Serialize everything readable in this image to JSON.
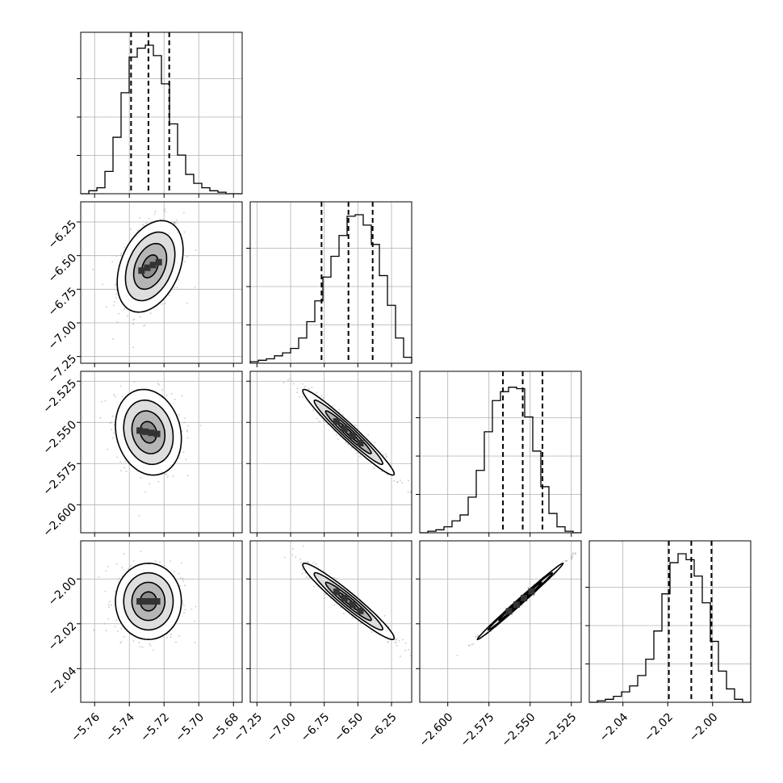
{
  "chart_data": {
    "type": "corner",
    "grid": true,
    "quantile_lines": "dashed",
    "parameters": [
      {
        "range": [
          -5.768,
          -5.675
        ],
        "ticks": [
          "−5.76",
          "−5.74",
          "−5.72",
          "−5.70",
          "−5.68"
        ],
        "tick_values": [
          -5.76,
          -5.74,
          -5.72,
          -5.7,
          -5.68
        ],
        "quantiles": [
          -5.739,
          -5.729,
          -5.717
        ],
        "hist": [
          0.0,
          0.02,
          0.04,
          0.15,
          0.38,
          0.68,
          0.92,
          0.98,
          1.0,
          0.93,
          0.74,
          0.47,
          0.26,
          0.13,
          0.07,
          0.04,
          0.02,
          0.01,
          0.0,
          0.0
        ]
      },
      {
        "range": [
          -7.3,
          -6.1
        ],
        "ticks": [
          "−7.25",
          "−7.00",
          "−6.75",
          "−6.50",
          "−6.25"
        ],
        "tick_values": [
          -7.25,
          -7.0,
          -6.75,
          -6.5,
          -6.25
        ],
        "quantiles": [
          -6.77,
          -6.57,
          -6.39
        ],
        "hist": [
          0.01,
          0.02,
          0.03,
          0.05,
          0.07,
          0.1,
          0.17,
          0.28,
          0.42,
          0.58,
          0.72,
          0.86,
          0.99,
          1.0,
          0.93,
          0.8,
          0.59,
          0.39,
          0.17,
          0.04
        ]
      },
      {
        "range": [
          -2.617,
          -2.519
        ],
        "ticks": [
          "−2.600",
          "−2.575",
          "−2.550",
          "−2.525"
        ],
        "tick_values": [
          -2.6,
          -2.575,
          -2.55,
          -2.525
        ],
        "quantiles": [
          -2.5665,
          -2.5545,
          -2.5425
        ],
        "hist": [
          0.0,
          0.01,
          0.02,
          0.04,
          0.08,
          0.12,
          0.24,
          0.42,
          0.68,
          0.89,
          0.95,
          0.98,
          0.97,
          0.78,
          0.55,
          0.31,
          0.13,
          0.04,
          0.01,
          0.0
        ]
      },
      {
        "range": [
          -2.055,
          -1.983
        ],
        "ticks": [
          "−2.04",
          "−2.02",
          "−2.00"
        ],
        "tick_values": [
          -2.04,
          -2.02,
          -2.0
        ],
        "quantiles": [
          -2.0195,
          -2.0095,
          -2.0005
        ],
        "hist": [
          0.0,
          0.01,
          0.02,
          0.04,
          0.07,
          0.11,
          0.18,
          0.29,
          0.48,
          0.73,
          0.94,
          1.0,
          0.96,
          0.85,
          0.67,
          0.41,
          0.21,
          0.09,
          0.02,
          0.0
        ]
      }
    ],
    "pairs": [
      {
        "x": 0,
        "y": 1,
        "center": [
          -5.728,
          -6.58
        ],
        "sigma": [
          0.0095,
          0.17
        ],
        "corr": 0.35
      },
      {
        "x": 0,
        "y": 2,
        "center": [
          -5.729,
          -2.556
        ],
        "sigma": [
          0.0095,
          0.013
        ],
        "corr": -0.15
      },
      {
        "x": 1,
        "y": 2,
        "center": [
          -6.57,
          -2.556
        ],
        "sigma": [
          0.17,
          0.013
        ],
        "corr": -0.97
      },
      {
        "x": 0,
        "y": 3,
        "center": [
          -5.729,
          -2.01
        ],
        "sigma": [
          0.0095,
          0.0085
        ],
        "corr": 0.0
      },
      {
        "x": 1,
        "y": 3,
        "center": [
          -6.57,
          -2.01
        ],
        "sigma": [
          0.17,
          0.0085
        ],
        "corr": -0.96
      },
      {
        "x": 2,
        "y": 3,
        "center": [
          -2.556,
          -2.01
        ],
        "sigma": [
          0.013,
          0.0085
        ],
        "corr": 0.995
      }
    ]
  }
}
